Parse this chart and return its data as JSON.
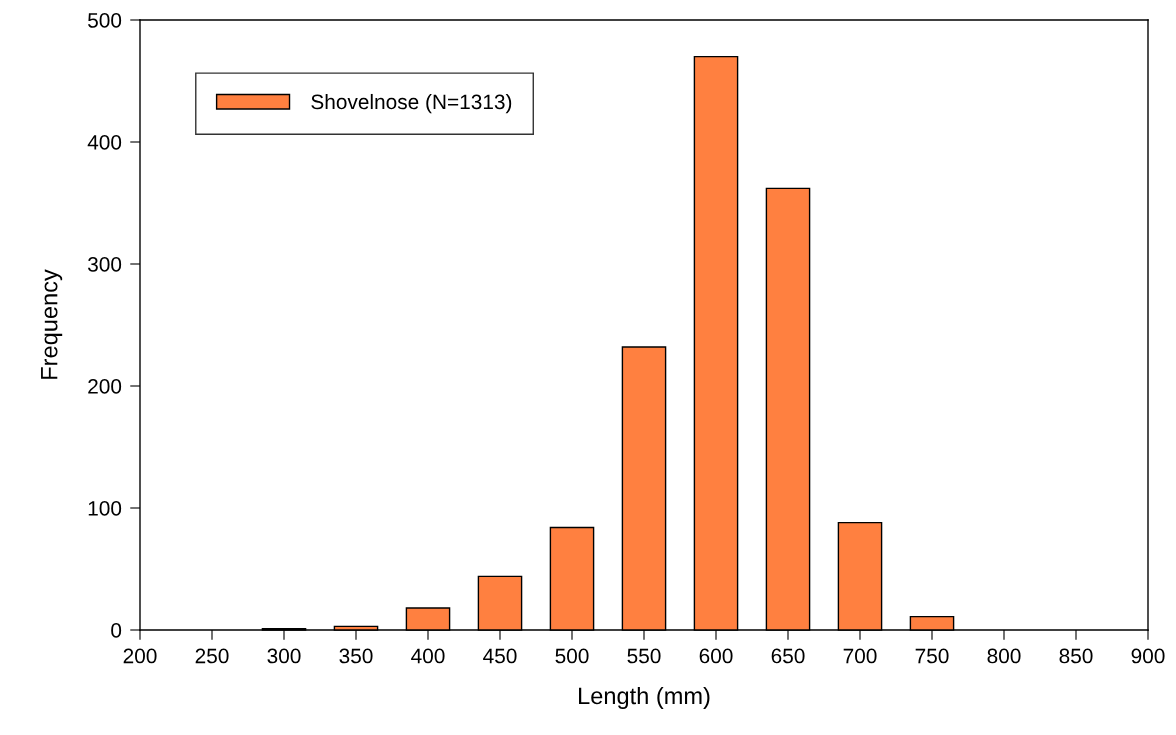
{
  "chart_data": {
    "type": "bar",
    "xlabel": "Length (mm)",
    "ylabel": "Frequency",
    "x": [
      300,
      350,
      400,
      450,
      500,
      550,
      600,
      650,
      700,
      750
    ],
    "series": [
      {
        "name": "Shovelnose (N=1313)",
        "color": "#ff8040",
        "values": [
          1,
          3,
          18,
          44,
          84,
          232,
          470,
          362,
          88,
          11
        ]
      }
    ],
    "xlim": [
      200,
      900
    ],
    "xticks": [
      200,
      250,
      300,
      350,
      400,
      450,
      500,
      550,
      600,
      650,
      700,
      750,
      800,
      850,
      900
    ],
    "ylim": [
      0,
      500
    ],
    "yticks": [
      0,
      100,
      200,
      300,
      400,
      500
    ],
    "grid": false,
    "legend": "top left"
  }
}
